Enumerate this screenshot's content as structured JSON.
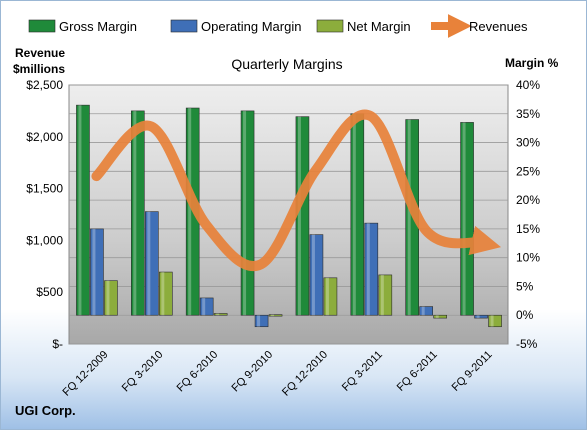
{
  "chart_data": {
    "type": "bar",
    "title": "Quarterly Margins",
    "company": "UGI Corp.",
    "categories": [
      "FQ 12-2009",
      "FQ 3-2010",
      "FQ 6-2010",
      "FQ 9-2010",
      "FQ 12-2010",
      "FQ 3-2011",
      "FQ 6-2011",
      "FQ 9-2011"
    ],
    "series": [
      {
        "name": "Gross Margin",
        "type": "bar",
        "axis": "right",
        "color": "#1f8a3a",
        "values": [
          36.5,
          35.5,
          36,
          35.5,
          34.5,
          35,
          34,
          33.5
        ]
      },
      {
        "name": "Operating Margin",
        "type": "bar",
        "axis": "right",
        "color": "#3f6fb7",
        "values": [
          15,
          18,
          3,
          -2,
          14,
          16,
          1.5,
          -0.5
        ]
      },
      {
        "name": "Net Margin",
        "type": "bar",
        "axis": "right",
        "color": "#8cad3c",
        "values": [
          6,
          7.5,
          0.3,
          0.1,
          6.5,
          7,
          -0.5,
          -2
        ]
      },
      {
        "name": "Revenues",
        "type": "line",
        "axis": "left",
        "color": "#e8823a",
        "values": [
          1620,
          2100,
          1150,
          770,
          1680,
          2200,
          1100,
          980
        ]
      }
    ],
    "y_left": {
      "label_line1": "Revenue",
      "label_line2": "$millions",
      "ylim": [
        0,
        2500
      ],
      "ticks": [
        "$-",
        "$500",
        "$1,000",
        "$1,500",
        "$2,000",
        "$2,500"
      ]
    },
    "y_right": {
      "label": "Margin %",
      "ylim": [
        -5,
        40
      ],
      "ticks": [
        "-5%",
        "0%",
        "5%",
        "10%",
        "15%",
        "20%",
        "25%",
        "30%",
        "35%",
        "40%"
      ]
    },
    "legend_position": "top",
    "grid": true
  }
}
